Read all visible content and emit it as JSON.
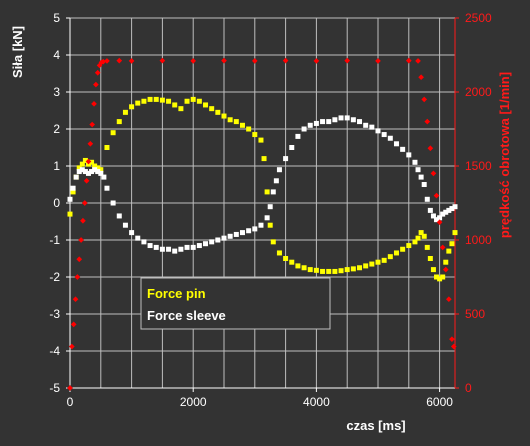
{
  "colors": {
    "background": "#333333",
    "plot_background": "#333333",
    "grid": "#bfbfbf",
    "force_pin": "#ffff00",
    "force_sleeve": "#ffffff",
    "speed": "#ff0000",
    "left_axis": "#ffffff",
    "right_axis": "#ff1a1a"
  },
  "chart_data": {
    "type": "scatter",
    "title": "",
    "xlabel": "czas [ms]",
    "ylabel": "Siła [kN]",
    "y2label": "prędkość obrotowa [1/min]",
    "xlim": [
      0,
      6250
    ],
    "ylim": [
      -5,
      5
    ],
    "y2lim": [
      0,
      2500
    ],
    "x_ticks": [
      0,
      2000,
      4000,
      6000
    ],
    "y_ticks": [
      -5,
      -4,
      -3,
      -2,
      -1,
      0,
      1,
      2,
      3,
      4,
      5
    ],
    "y2_ticks": [
      0,
      500,
      1000,
      1500,
      2000,
      2500
    ],
    "x_grid": [
      500,
      1000,
      1500,
      2000,
      2500,
      3000,
      3500,
      4000,
      4500,
      5000,
      5500,
      6000
    ],
    "grid": true,
    "legend_position": "bottom-left",
    "series": [
      {
        "name": "Force pin",
        "axis": "left",
        "color": "#ffff00",
        "x": [
          0,
          50,
          100,
          150,
          200,
          250,
          300,
          350,
          400,
          450,
          500,
          600,
          700,
          800,
          900,
          1000,
          1100,
          1200,
          1300,
          1400,
          1500,
          1600,
          1700,
          1800,
          1900,
          2000,
          2100,
          2200,
          2300,
          2400,
          2500,
          2600,
          2700,
          2800,
          2900,
          3000,
          3100,
          3150,
          3200,
          3250,
          3300,
          3400,
          3500,
          3600,
          3700,
          3800,
          3900,
          4000,
          4100,
          4200,
          4300,
          4400,
          4500,
          4600,
          4700,
          4800,
          4900,
          5000,
          5100,
          5200,
          5300,
          5400,
          5500,
          5600,
          5650,
          5700,
          5750,
          5800,
          5850,
          5900,
          5950,
          6000,
          6050,
          6100,
          6150,
          6200,
          6250
        ],
        "values": [
          -0.3,
          0.3,
          0.7,
          0.95,
          1.05,
          1.15,
          1.05,
          1.1,
          1.0,
          0.95,
          0.9,
          1.5,
          1.9,
          2.2,
          2.45,
          2.6,
          2.7,
          2.75,
          2.8,
          2.8,
          2.78,
          2.75,
          2.65,
          2.55,
          2.75,
          2.8,
          2.75,
          2.65,
          2.55,
          2.45,
          2.35,
          2.25,
          2.2,
          2.1,
          2.0,
          1.85,
          1.7,
          1.2,
          0.3,
          -0.6,
          -1.05,
          -1.35,
          -1.5,
          -1.6,
          -1.7,
          -1.75,
          -1.8,
          -1.82,
          -1.85,
          -1.85,
          -1.85,
          -1.83,
          -1.8,
          -1.78,
          -1.75,
          -1.7,
          -1.65,
          -1.6,
          -1.55,
          -1.45,
          -1.35,
          -1.25,
          -1.15,
          -1.05,
          -0.95,
          -0.8,
          -0.9,
          -1.2,
          -1.5,
          -1.8,
          -2.0,
          -2.05,
          -2.0,
          -1.6,
          -1.3,
          -1.1,
          -0.8
        ]
      },
      {
        "name": "Force sleeve",
        "axis": "left",
        "color": "#ffffff",
        "x": [
          0,
          50,
          100,
          150,
          200,
          250,
          300,
          350,
          400,
          450,
          500,
          550,
          600,
          700,
          800,
          900,
          1000,
          1100,
          1200,
          1300,
          1400,
          1500,
          1600,
          1700,
          1800,
          1900,
          2000,
          2100,
          2200,
          2300,
          2400,
          2500,
          2600,
          2700,
          2800,
          2900,
          3000,
          3100,
          3200,
          3250,
          3300,
          3350,
          3400,
          3500,
          3600,
          3700,
          3800,
          3900,
          4000,
          4100,
          4200,
          4300,
          4400,
          4500,
          4600,
          4700,
          4800,
          4900,
          5000,
          5100,
          5200,
          5300,
          5400,
          5500,
          5600,
          5650,
          5700,
          5750,
          5800,
          5850,
          5900,
          5950,
          6000,
          6050,
          6100,
          6150,
          6200,
          6250
        ],
        "values": [
          0.1,
          0.4,
          0.7,
          0.85,
          0.9,
          0.85,
          0.8,
          0.85,
          0.9,
          0.85,
          0.8,
          0.7,
          0.4,
          0.0,
          -0.35,
          -0.6,
          -0.8,
          -0.95,
          -1.05,
          -1.15,
          -1.2,
          -1.25,
          -1.25,
          -1.3,
          -1.25,
          -1.2,
          -1.2,
          -1.15,
          -1.1,
          -1.05,
          -1.0,
          -0.95,
          -0.9,
          -0.85,
          -0.8,
          -0.75,
          -0.7,
          -0.6,
          -0.4,
          -0.1,
          0.3,
          0.6,
          0.9,
          1.2,
          1.5,
          1.8,
          2.0,
          2.1,
          2.15,
          2.2,
          2.2,
          2.25,
          2.3,
          2.3,
          2.25,
          2.2,
          2.1,
          2.05,
          1.95,
          1.85,
          1.75,
          1.6,
          1.45,
          1.3,
          1.1,
          0.9,
          0.7,
          0.5,
          0.1,
          -0.2,
          -0.35,
          -0.45,
          -0.4,
          -0.3,
          -0.25,
          -0.2,
          -0.15,
          -0.1
        ]
      },
      {
        "name": "",
        "axis": "right",
        "color": "#ff0000",
        "x": [
          0,
          30,
          60,
          90,
          120,
          150,
          180,
          210,
          240,
          270,
          300,
          330,
          360,
          390,
          420,
          450,
          480,
          510,
          540,
          600,
          800,
          1000,
          1500,
          2000,
          2500,
          3000,
          3500,
          4000,
          4500,
          5000,
          5500,
          5650,
          5700,
          5750,
          5800,
          5850,
          5900,
          5950,
          6000,
          6050,
          6100,
          6150,
          6200,
          6230
        ],
        "values": [
          0,
          280,
          430,
          600,
          750,
          870,
          1000,
          1130,
          1250,
          1400,
          1530,
          1650,
          1780,
          1920,
          2050,
          2130,
          2180,
          2200,
          2205,
          2210,
          2212,
          2210,
          2212,
          2210,
          2212,
          2210,
          2212,
          2210,
          2212,
          2210,
          2212,
          2210,
          2100,
          1950,
          1800,
          1620,
          1450,
          1300,
          1120,
          950,
          800,
          600,
          330,
          280
        ]
      }
    ]
  }
}
